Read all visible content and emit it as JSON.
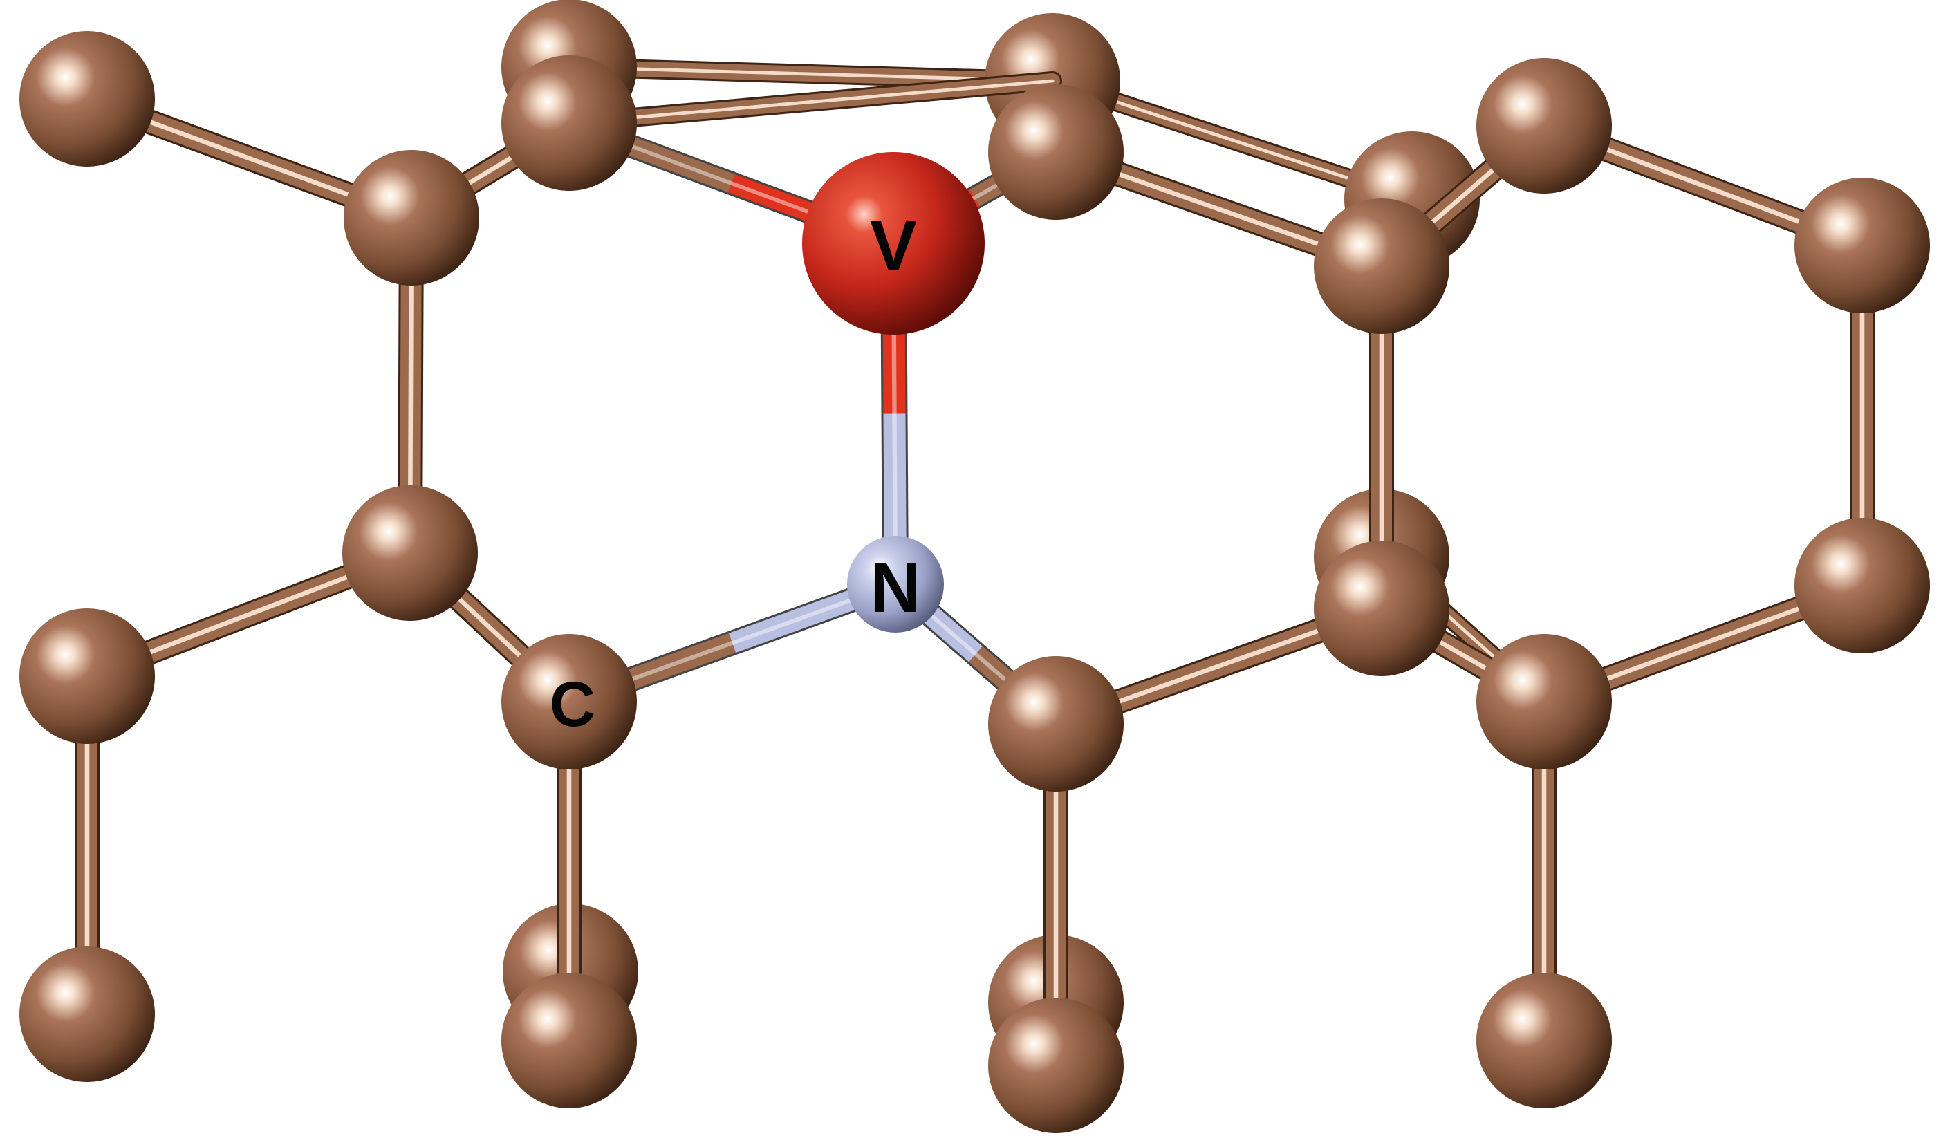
{
  "molecule": {
    "colors": {
      "carbon": "#8a5a3c",
      "carbon_highlight": "#fff2e6",
      "carbon_shadow": "#3e2414",
      "vanadium": "#c4261a",
      "vanadium_highlight": "#ff7f6a",
      "nitrogen": "#a7aed2",
      "nitrogen_highlight": "#f2f4ff",
      "bond_carbon": "#9b6a4c",
      "bond_carbon_light": "#f3dcc9",
      "bond_vanadium": "#e0321c",
      "bond_nitrogen": "#b8bfe0"
    },
    "labels": {
      "vanadium": "V",
      "nitrogen": "N",
      "carbon": "C"
    }
  }
}
